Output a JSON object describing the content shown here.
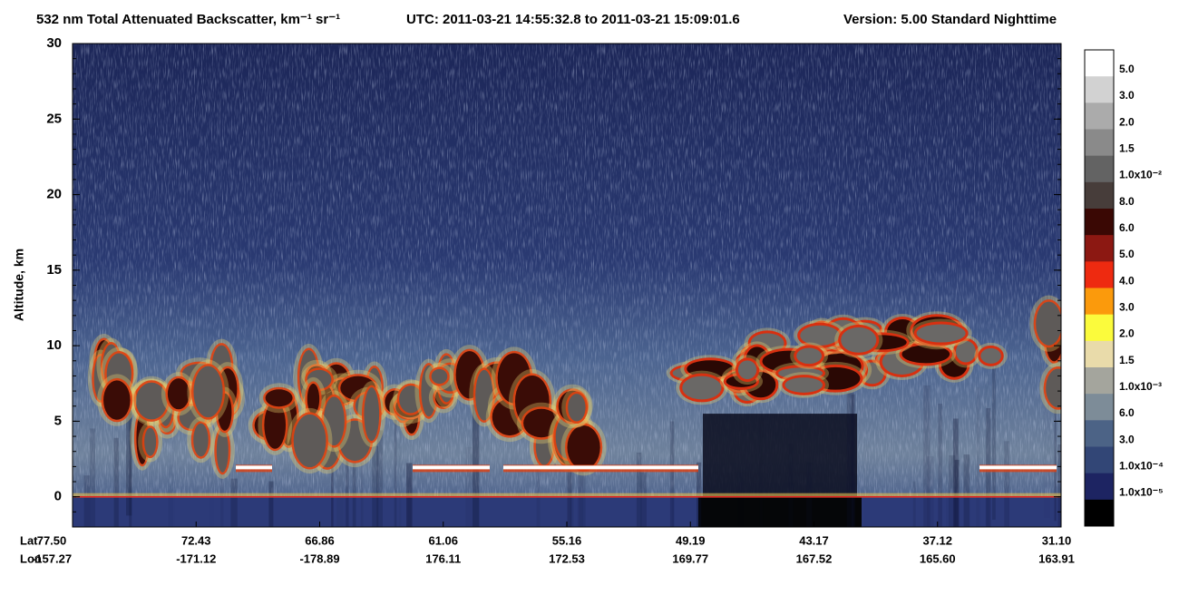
{
  "chart_data": {
    "type": "curtain",
    "title": "532 nm Total Attenuated Backscatter, km⁻¹ sr⁻¹",
    "time_range": "UTC:  2011-03-21 14:55:32.8  to  2011-03-21 15:09:01.6",
    "version": "Version: 5.00  Standard  Nighttime",
    "y_label": "Altitude, km",
    "ylim": [
      -2,
      30
    ],
    "yticks": [
      0,
      5,
      10,
      15,
      20,
      25,
      30
    ],
    "x_row_labels": [
      "Lat",
      "Lon"
    ],
    "lat_labels": [
      "77.50",
      "72.43",
      "66.86",
      "61.06",
      "55.16",
      "49.19",
      "43.17",
      "37.12",
      "31.10"
    ],
    "lon_labels": [
      "-157.27",
      "-171.12",
      "-178.89",
      "176.11",
      "172.53",
      "169.77",
      "167.52",
      "165.60",
      "163.91"
    ],
    "colorbar": {
      "colors": [
        "#ffffff",
        "#d2d2d2",
        "#ababab",
        "#8a8a8a",
        "#636363",
        "#473d3a",
        "#3a0804",
        "#8c1812",
        "#ee2a10",
        "#fb9a0c",
        "#fbfb3c",
        "#e9dbaa",
        "#a4a59d",
        "#7d8c98",
        "#4c6386",
        "#324676",
        "#1d2462",
        "#000000"
      ],
      "labels": [
        "5.0",
        "3.0",
        "2.0",
        "1.5",
        "1.0x10⁻²",
        "8.0",
        "6.0",
        "5.0",
        "4.0",
        "3.0",
        "2.0",
        "1.5",
        "1.0x10⁻³",
        "6.0",
        "3.0",
        "1.0x10⁻⁴",
        "1.0x10⁻⁵"
      ]
    }
  }
}
